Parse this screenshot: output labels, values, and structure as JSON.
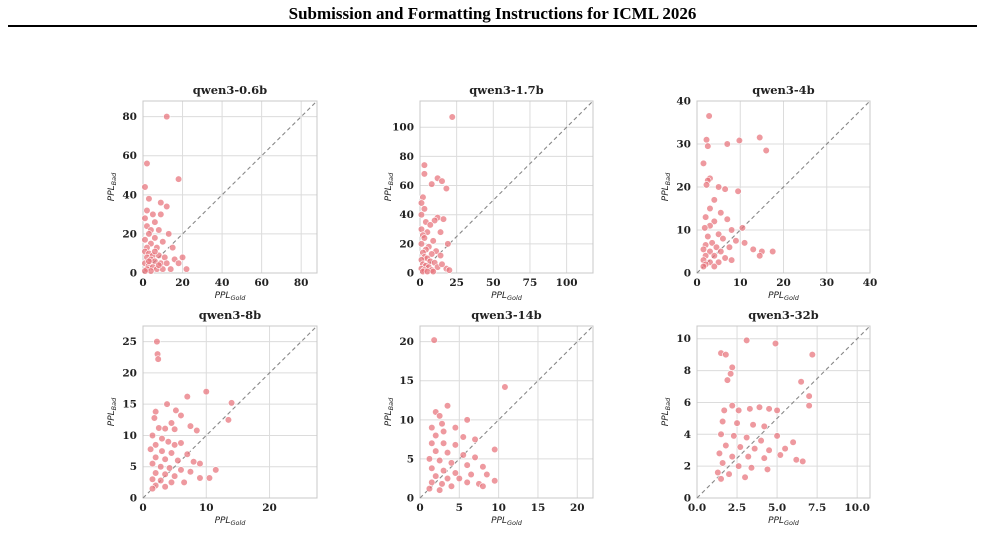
{
  "header": {
    "title": "Submission and Formatting Instructions for ICML 2026"
  },
  "chart_data": [
    {
      "type": "scatter",
      "title": "qwen3-0.6b",
      "xlabel": "PPL",
      "xlabel_sub": "Gold",
      "ylabel": "PPL",
      "ylabel_sub": "Bad",
      "xlim": [
        0,
        88
      ],
      "ylim": [
        0,
        88
      ],
      "xticks": [
        0,
        20,
        40,
        60,
        80
      ],
      "yticks": [
        0,
        20,
        40,
        60,
        80
      ],
      "tick_decimals": 0,
      "diagonal": true,
      "grid": true,
      "point_color": "#e8717a",
      "points": [
        [
          12,
          80
        ],
        [
          2,
          56
        ],
        [
          18,
          48
        ],
        [
          1,
          44
        ],
        [
          9,
          36
        ],
        [
          3,
          38
        ],
        [
          12,
          34
        ],
        [
          5,
          30
        ],
        [
          2,
          32
        ],
        [
          9,
          30
        ],
        [
          1,
          28
        ],
        [
          6,
          26
        ],
        [
          2,
          24
        ],
        [
          4,
          22
        ],
        [
          8,
          22
        ],
        [
          13,
          20
        ],
        [
          3,
          20
        ],
        [
          6,
          18
        ],
        [
          10,
          16
        ],
        [
          1,
          17
        ],
        [
          4,
          15
        ],
        [
          7,
          13
        ],
        [
          2,
          13
        ],
        [
          15,
          13
        ],
        [
          1,
          11
        ],
        [
          3,
          10
        ],
        [
          5,
          9
        ],
        [
          8,
          9
        ],
        [
          11,
          8
        ],
        [
          16,
          7
        ],
        [
          2,
          8
        ],
        [
          4,
          7
        ],
        [
          6,
          6
        ],
        [
          9,
          5
        ],
        [
          12,
          5
        ],
        [
          20,
          8
        ],
        [
          18,
          5
        ],
        [
          22,
          2
        ],
        [
          1,
          5
        ],
        [
          3,
          4
        ],
        [
          5,
          3
        ],
        [
          7,
          2
        ],
        [
          2,
          2
        ],
        [
          10,
          2
        ],
        [
          14,
          2
        ],
        [
          4,
          1
        ],
        [
          1,
          1
        ],
        [
          6,
          11
        ],
        [
          3,
          6
        ],
        [
          8,
          4
        ]
      ]
    },
    {
      "type": "scatter",
      "title": "qwen3-1.7b",
      "xlabel": "PPL",
      "xlabel_sub": "Gold",
      "ylabel": "PPL",
      "ylabel_sub": "Bad",
      "xlim": [
        0,
        118
      ],
      "ylim": [
        0,
        118
      ],
      "xticks": [
        0,
        25,
        50,
        75,
        100
      ],
      "yticks": [
        0,
        20,
        40,
        60,
        80,
        100
      ],
      "tick_decimals": 0,
      "diagonal": true,
      "grid": true,
      "point_color": "#e8717a",
      "points": [
        [
          22,
          107
        ],
        [
          3,
          74
        ],
        [
          3,
          68
        ],
        [
          12,
          65
        ],
        [
          15,
          63
        ],
        [
          8,
          61
        ],
        [
          18,
          58
        ],
        [
          2,
          52
        ],
        [
          1,
          48
        ],
        [
          3,
          44
        ],
        [
          1,
          40
        ],
        [
          12,
          38
        ],
        [
          16,
          37
        ],
        [
          10,
          36
        ],
        [
          4,
          35
        ],
        [
          7,
          33
        ],
        [
          1,
          30
        ],
        [
          5,
          28
        ],
        [
          14,
          28
        ],
        [
          2,
          26
        ],
        [
          3,
          24
        ],
        [
          9,
          22
        ],
        [
          19,
          20
        ],
        [
          1,
          20
        ],
        [
          6,
          18
        ],
        [
          4,
          16
        ],
        [
          11,
          15
        ],
        [
          2,
          14
        ],
        [
          8,
          13
        ],
        [
          14,
          12
        ],
        [
          3,
          11
        ],
        [
          5,
          10
        ],
        [
          1,
          9
        ],
        [
          7,
          8
        ],
        [
          10,
          7
        ],
        [
          2,
          6
        ],
        [
          4,
          5
        ],
        [
          6,
          4
        ],
        [
          12,
          4
        ],
        [
          18,
          3
        ],
        [
          1,
          3
        ],
        [
          3,
          2
        ],
        [
          8,
          2
        ],
        [
          2,
          1
        ],
        [
          5,
          1
        ],
        [
          9,
          1
        ],
        [
          15,
          6
        ],
        [
          20,
          2
        ]
      ]
    },
    {
      "type": "scatter",
      "title": "qwen3-4b",
      "xlabel": "PPL",
      "xlabel_sub": "Gold",
      "ylabel": "PPL",
      "ylabel_sub": "Bad",
      "xlim": [
        0,
        40
      ],
      "ylim": [
        0,
        40
      ],
      "xticks": [
        0,
        10,
        20,
        30,
        40
      ],
      "yticks": [
        0,
        10,
        20,
        30,
        40
      ],
      "tick_decimals": 0,
      "diagonal": true,
      "grid": true,
      "point_color": "#e8717a",
      "points": [
        [
          2.8,
          36.5
        ],
        [
          2.2,
          31
        ],
        [
          14.5,
          31.5
        ],
        [
          7,
          30
        ],
        [
          9.8,
          30.8
        ],
        [
          2.5,
          29.5
        ],
        [
          16,
          28.5
        ],
        [
          1.5,
          25.5
        ],
        [
          3,
          22
        ],
        [
          2.5,
          21.5
        ],
        [
          2.2,
          20.5
        ],
        [
          5,
          20
        ],
        [
          6.5,
          19.5
        ],
        [
          9.5,
          19
        ],
        [
          4,
          17
        ],
        [
          3,
          15
        ],
        [
          5.5,
          14
        ],
        [
          2,
          13
        ],
        [
          4,
          12
        ],
        [
          7,
          12.5
        ],
        [
          3,
          11
        ],
        [
          1.8,
          10.5
        ],
        [
          8,
          10
        ],
        [
          10.5,
          10.5
        ],
        [
          5,
          9
        ],
        [
          2.5,
          8.5
        ],
        [
          6,
          8
        ],
        [
          9,
          7.5
        ],
        [
          3.5,
          7
        ],
        [
          11,
          7
        ],
        [
          2,
          6.5
        ],
        [
          4.5,
          6
        ],
        [
          7.5,
          6
        ],
        [
          1.5,
          5.5
        ],
        [
          3,
          5
        ],
        [
          5.5,
          5
        ],
        [
          13,
          5.5
        ],
        [
          15,
          5
        ],
        [
          17.5,
          5
        ],
        [
          2,
          4
        ],
        [
          4,
          4
        ],
        [
          6.5,
          3.5
        ],
        [
          14.5,
          4
        ],
        [
          1.5,
          3
        ],
        [
          3,
          2.5
        ],
        [
          5,
          2.5
        ],
        [
          8,
          3
        ],
        [
          2,
          2
        ],
        [
          1.5,
          1.5
        ],
        [
          4,
          1.5
        ]
      ]
    },
    {
      "type": "scatter",
      "title": "qwen3-8b",
      "xlabel": "PPL",
      "xlabel_sub": "Gold",
      "ylabel": "PPL",
      "ylabel_sub": "Bad",
      "xlim": [
        0,
        27.5
      ],
      "ylim": [
        0,
        27.5
      ],
      "xticks": [
        0,
        10,
        20
      ],
      "yticks": [
        0,
        5,
        10,
        15,
        20,
        25
      ],
      "tick_decimals": 0,
      "diagonal": true,
      "grid": true,
      "point_color": "#e8717a",
      "points": [
        [
          2.2,
          25
        ],
        [
          2.3,
          23
        ],
        [
          2.4,
          22.2
        ],
        [
          10,
          17
        ],
        [
          7,
          16.2
        ],
        [
          14,
          15.2
        ],
        [
          3.8,
          15
        ],
        [
          5.2,
          14
        ],
        [
          2,
          13.8
        ],
        [
          6,
          13.2
        ],
        [
          13.5,
          12.5
        ],
        [
          1.8,
          12.8
        ],
        [
          4.5,
          12
        ],
        [
          7.5,
          11.5
        ],
        [
          2.5,
          11.2
        ],
        [
          3.5,
          11.1
        ],
        [
          5,
          11
        ],
        [
          8.5,
          10.8
        ],
        [
          1.5,
          10
        ],
        [
          3,
          9.5
        ],
        [
          4,
          9
        ],
        [
          6,
          8.8
        ],
        [
          2,
          8.5
        ],
        [
          5,
          8.5
        ],
        [
          1.2,
          7.8
        ],
        [
          3,
          7.5
        ],
        [
          4.5,
          7.2
        ],
        [
          7,
          7
        ],
        [
          2,
          6.5
        ],
        [
          3.5,
          6.2
        ],
        [
          5.5,
          6
        ],
        [
          8,
          5.8
        ],
        [
          9,
          5.5
        ],
        [
          1.5,
          5.5
        ],
        [
          2.8,
          5
        ],
        [
          4.2,
          4.8
        ],
        [
          6,
          4.5
        ],
        [
          7.5,
          4.2
        ],
        [
          11.5,
          4.5
        ],
        [
          2,
          4
        ],
        [
          3.5,
          3.8
        ],
        [
          5,
          3.5
        ],
        [
          9,
          3.2
        ],
        [
          10.5,
          3.2
        ],
        [
          1.5,
          3
        ],
        [
          2.8,
          2.8
        ],
        [
          4.5,
          2.5
        ],
        [
          2,
          2
        ],
        [
          3.5,
          1.8
        ],
        [
          1.5,
          1.5
        ],
        [
          6.5,
          2.5
        ]
      ]
    },
    {
      "type": "scatter",
      "title": "qwen3-14b",
      "xlabel": "PPL",
      "xlabel_sub": "Gold",
      "ylabel": "PPL",
      "ylabel_sub": "Bad",
      "xlim": [
        0,
        22
      ],
      "ylim": [
        0,
        22
      ],
      "xticks": [
        0,
        5,
        10,
        15,
        20
      ],
      "yticks": [
        0,
        5,
        10,
        15,
        20
      ],
      "tick_decimals": 0,
      "diagonal": true,
      "grid": true,
      "point_color": "#e8717a",
      "points": [
        [
          1.8,
          20.2
        ],
        [
          10.8,
          14.2
        ],
        [
          2,
          11
        ],
        [
          2.5,
          10.5
        ],
        [
          3.5,
          11.8
        ],
        [
          2.8,
          9.5
        ],
        [
          1.5,
          9
        ],
        [
          6,
          10
        ],
        [
          4.5,
          9
        ],
        [
          3,
          8.5
        ],
        [
          2,
          8
        ],
        [
          5.5,
          7.8
        ],
        [
          7,
          7.5
        ],
        [
          1.5,
          7
        ],
        [
          3,
          7
        ],
        [
          4.5,
          6.8
        ],
        [
          9.5,
          6.2
        ],
        [
          2,
          6
        ],
        [
          3.5,
          5.8
        ],
        [
          5.5,
          5.5
        ],
        [
          7,
          5.2
        ],
        [
          1.2,
          5
        ],
        [
          2.5,
          4.8
        ],
        [
          4,
          4.5
        ],
        [
          6,
          4.2
        ],
        [
          8,
          4
        ],
        [
          1.5,
          3.8
        ],
        [
          3,
          3.5
        ],
        [
          4.5,
          3.2
        ],
        [
          6.5,
          3
        ],
        [
          8.5,
          3
        ],
        [
          2,
          2.8
        ],
        [
          3.5,
          2.5
        ],
        [
          5,
          2.5
        ],
        [
          9.5,
          2.2
        ],
        [
          1.5,
          2
        ],
        [
          2.8,
          1.8
        ],
        [
          4,
          1.5
        ],
        [
          7.5,
          1.8
        ],
        [
          1.2,
          1.2
        ],
        [
          2.5,
          1
        ],
        [
          6,
          2
        ],
        [
          8,
          1.5
        ]
      ]
    },
    {
      "type": "scatter",
      "title": "qwen3-32b",
      "xlabel": "PPL",
      "xlabel_sub": "Gold",
      "ylabel": "PPL",
      "ylabel_sub": "Bad",
      "xlim": [
        0,
        10.8
      ],
      "ylim": [
        0,
        10.8
      ],
      "xticks": [
        0,
        2.5,
        5,
        7.5,
        10
      ],
      "yticks": [
        0,
        2,
        4,
        6,
        8,
        10
      ],
      "tick_decimals": 1,
      "diagonal": true,
      "grid": true,
      "point_color": "#e8717a",
      "points": [
        [
          3.1,
          9.9
        ],
        [
          4.9,
          9.7
        ],
        [
          1.5,
          9.1
        ],
        [
          1.8,
          9
        ],
        [
          7.2,
          9
        ],
        [
          2.2,
          8.2
        ],
        [
          2.1,
          7.8
        ],
        [
          1.9,
          7.4
        ],
        [
          6.5,
          7.3
        ],
        [
          7,
          6.4
        ],
        [
          7,
          5.8
        ],
        [
          1.7,
          5.5
        ],
        [
          2.2,
          5.8
        ],
        [
          2.6,
          5.5
        ],
        [
          3.3,
          5.6
        ],
        [
          3.9,
          5.7
        ],
        [
          4.5,
          5.6
        ],
        [
          5,
          5.5
        ],
        [
          1.6,
          4.8
        ],
        [
          2.5,
          4.7
        ],
        [
          3.5,
          4.6
        ],
        [
          4.2,
          4.5
        ],
        [
          1.5,
          4
        ],
        [
          2.3,
          3.9
        ],
        [
          3.1,
          3.8
        ],
        [
          4,
          3.6
        ],
        [
          5,
          3.9
        ],
        [
          6,
          3.5
        ],
        [
          1.8,
          3.3
        ],
        [
          2.7,
          3.2
        ],
        [
          3.6,
          3.1
        ],
        [
          4.5,
          3
        ],
        [
          5.5,
          3.1
        ],
        [
          1.4,
          2.8
        ],
        [
          2.2,
          2.6
        ],
        [
          3.2,
          2.6
        ],
        [
          4.2,
          2.5
        ],
        [
          5.2,
          2.7
        ],
        [
          6.2,
          2.4
        ],
        [
          6.6,
          2.3
        ],
        [
          1.6,
          2.2
        ],
        [
          2.6,
          2
        ],
        [
          3.4,
          1.9
        ],
        [
          4.4,
          1.8
        ],
        [
          1.3,
          1.6
        ],
        [
          2,
          1.5
        ],
        [
          3,
          1.3
        ],
        [
          1.5,
          1.2
        ]
      ]
    }
  ]
}
